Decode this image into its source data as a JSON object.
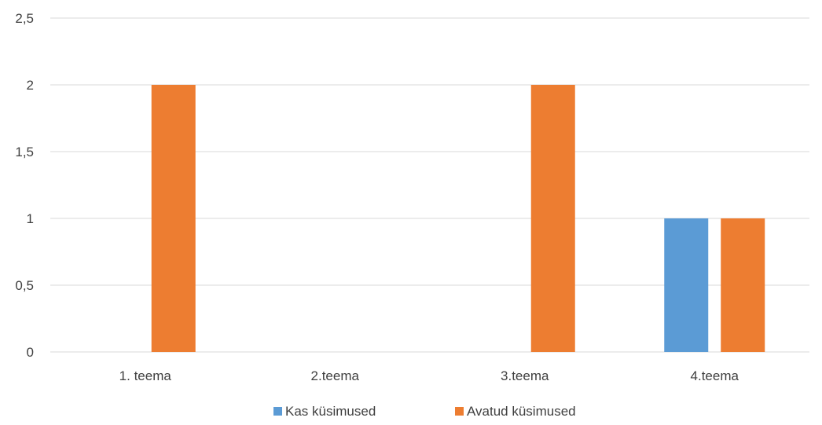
{
  "chart_data": {
    "type": "bar",
    "categories": [
      "1. teema",
      "2.teema",
      "3.teema",
      "4.teema"
    ],
    "series": [
      {
        "name": "Kas küsimused",
        "color": "#5B9BD5",
        "values": [
          0,
          0,
          0,
          1
        ]
      },
      {
        "name": "Avatud küsimused",
        "color": "#ED7D31",
        "values": [
          2,
          0,
          2,
          1
        ]
      }
    ],
    "y_ticks": [
      "0",
      "0,5",
      "1",
      "1,5",
      "2",
      "2,5"
    ],
    "ylim": [
      0,
      2.5
    ],
    "title": "",
    "xlabel": "",
    "ylabel": "",
    "grid": true,
    "gridline_color": "#D9D9D9",
    "legend_position": "bottom"
  }
}
